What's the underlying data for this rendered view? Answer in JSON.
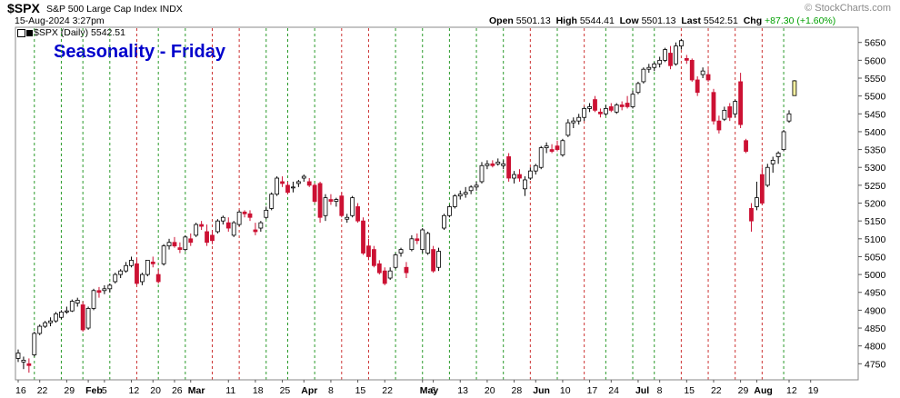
{
  "header": {
    "symbol": "$SPX",
    "name": "S&P 500 Large Cap Index  INDX",
    "brand": "© StockCharts.com",
    "datetime": "15-Aug-2024 3:27pm",
    "quote": {
      "open_label": "Open",
      "open": "5501.13",
      "high_label": "High",
      "high": "5544.41",
      "low_label": "Low",
      "low": "5501.13",
      "last_label": "Last",
      "last": "5542.51",
      "chg_label": "Chg",
      "chg": "+87.30 (+1.60%)"
    },
    "legend": "$SPX (Daily) 5542.51"
  },
  "colors": {
    "up": "#000000",
    "down": "#cc1133",
    "green_line": "#2a9a2a",
    "red_line": "#cc3333",
    "title": "#0000cc",
    "highlight": "#f5f0a0"
  },
  "chart_data": {
    "type": "candlestick",
    "title": "Seasonality - Friday",
    "ylim": [
      4705,
      5690
    ],
    "y_ticks": [
      4750,
      4800,
      4850,
      4900,
      4950,
      5000,
      5050,
      5100,
      5150,
      5200,
      5250,
      5300,
      5350,
      5400,
      5450,
      5500,
      5550,
      5600,
      5650
    ],
    "x_tick_labels": [
      {
        "i": 0,
        "label": "16"
      },
      {
        "i": 4,
        "label": "22"
      },
      {
        "i": 9,
        "label": "29"
      },
      {
        "i": 13,
        "label": "Feb",
        "bold": true
      },
      {
        "i": 16,
        "label": "5"
      },
      {
        "i": 21,
        "label": "12"
      },
      {
        "i": 25,
        "label": "20"
      },
      {
        "i": 29,
        "label": "26"
      },
      {
        "i": 32,
        "label": "Mar",
        "bold": true
      },
      {
        "i": 39,
        "label": "11"
      },
      {
        "i": 44,
        "label": "18"
      },
      {
        "i": 49,
        "label": "25"
      },
      {
        "i": 53,
        "label": "Apr",
        "bold": true
      },
      {
        "i": 58,
        "label": "8"
      },
      {
        "i": 63,
        "label": "15"
      },
      {
        "i": 68,
        "label": "22"
      },
      {
        "i": 75,
        "label": "May",
        "bold": true
      },
      {
        "i": 77,
        "label": "6"
      },
      {
        "i": 82,
        "label": "13"
      },
      {
        "i": 87,
        "label": "20"
      },
      {
        "i": 92,
        "label": "28"
      },
      {
        "i": 96,
        "label": "Jun",
        "bold": true
      },
      {
        "i": 101,
        "label": "10"
      },
      {
        "i": 106,
        "label": "17"
      },
      {
        "i": 110,
        "label": "24"
      },
      {
        "i": 115,
        "label": "Jul",
        "bold": true
      },
      {
        "i": 119,
        "label": "8"
      },
      {
        "i": 124,
        "label": "15"
      },
      {
        "i": 129,
        "label": "22"
      },
      {
        "i": 134,
        "label": "29"
      },
      {
        "i": 137,
        "label": "Aug",
        "bold": true
      },
      {
        "i": 143,
        "label": "12"
      },
      {
        "i": 147,
        "label": "19"
      }
    ],
    "friday_lines": [
      {
        "i": 3,
        "color": "green"
      },
      {
        "i": 8,
        "color": "green"
      },
      {
        "i": 12,
        "color": "green"
      },
      {
        "i": 17,
        "color": "green"
      },
      {
        "i": 22,
        "color": "red"
      },
      {
        "i": 26,
        "color": "green"
      },
      {
        "i": 31,
        "color": "green"
      },
      {
        "i": 36,
        "color": "red"
      },
      {
        "i": 41,
        "color": "red"
      },
      {
        "i": 46,
        "color": "green"
      },
      {
        "i": 50,
        "color": "green"
      },
      {
        "i": 55,
        "color": "green"
      },
      {
        "i": 60,
        "color": "red"
      },
      {
        "i": 65,
        "color": "red"
      },
      {
        "i": 70,
        "color": "green"
      },
      {
        "i": 75,
        "color": "green"
      },
      {
        "i": 80,
        "color": "green"
      },
      {
        "i": 85,
        "color": "green"
      },
      {
        "i": 90,
        "color": "green"
      },
      {
        "i": 95,
        "color": "red"
      },
      {
        "i": 100,
        "color": "green"
      },
      {
        "i": 105,
        "color": "red"
      },
      {
        "i": 109,
        "color": "green"
      },
      {
        "i": 114,
        "color": "green"
      },
      {
        "i": 118,
        "color": "green"
      },
      {
        "i": 123,
        "color": "red"
      },
      {
        "i": 128,
        "color": "red"
      },
      {
        "i": 133,
        "color": "red"
      },
      {
        "i": 138,
        "color": "red"
      },
      {
        "i": 142,
        "color": "green"
      }
    ],
    "ohlc": [
      {
        "o": 4765,
        "h": 4790,
        "l": 4755,
        "c": 4780
      },
      {
        "o": 4755,
        "h": 4770,
        "l": 4735,
        "c": 4760
      },
      {
        "o": 4750,
        "h": 4765,
        "l": 4725,
        "c": 4745
      },
      {
        "o": 4775,
        "h": 4840,
        "l": 4770,
        "c": 4835
      },
      {
        "o": 4835,
        "h": 4860,
        "l": 4830,
        "c": 4855
      },
      {
        "o": 4855,
        "h": 4870,
        "l": 4850,
        "c": 4865
      },
      {
        "o": 4865,
        "h": 4880,
        "l": 4855,
        "c": 4870
      },
      {
        "o": 4870,
        "h": 4895,
        "l": 4865,
        "c": 4890
      },
      {
        "o": 4880,
        "h": 4900,
        "l": 4875,
        "c": 4895
      },
      {
        "o": 4895,
        "h": 4910,
        "l": 4890,
        "c": 4898
      },
      {
        "o": 4898,
        "h": 4930,
        "l": 4895,
        "c": 4925
      },
      {
        "o": 4920,
        "h": 4935,
        "l": 4910,
        "c": 4928
      },
      {
        "o": 4915,
        "h": 4925,
        "l": 4840,
        "c": 4845
      },
      {
        "o": 4850,
        "h": 4910,
        "l": 4845,
        "c": 4905
      },
      {
        "o": 4905,
        "h": 4960,
        "l": 4900,
        "c": 4955
      },
      {
        "o": 4955,
        "h": 4965,
        "l": 4935,
        "c": 4950
      },
      {
        "o": 4955,
        "h": 4970,
        "l": 4945,
        "c": 4960
      },
      {
        "o": 4960,
        "h": 4975,
        "l": 4950,
        "c": 4970
      },
      {
        "o": 4980,
        "h": 5005,
        "l": 4975,
        "c": 5000
      },
      {
        "o": 5000,
        "h": 5015,
        "l": 4990,
        "c": 5010
      },
      {
        "o": 5010,
        "h": 5035,
        "l": 5005,
        "c": 5025
      },
      {
        "o": 5025,
        "h": 5050,
        "l": 5020,
        "c": 5040
      },
      {
        "o": 5030,
        "h": 5045,
        "l": 4970,
        "c": 4975
      },
      {
        "o": 4980,
        "h": 5005,
        "l": 4970,
        "c": 5000
      },
      {
        "o": 5000,
        "h": 5040,
        "l": 4995,
        "c": 5040
      },
      {
        "o": 5035,
        "h": 5050,
        "l": 5020,
        "c": 5030
      },
      {
        "o": 5000,
        "h": 5015,
        "l": 4975,
        "c": 4980
      },
      {
        "o": 5030,
        "h": 5085,
        "l": 5025,
        "c": 5080
      },
      {
        "o": 5080,
        "h": 5100,
        "l": 5070,
        "c": 5090
      },
      {
        "o": 5090,
        "h": 5105,
        "l": 5075,
        "c": 5080
      },
      {
        "o": 5075,
        "h": 5090,
        "l": 5060,
        "c": 5070
      },
      {
        "o": 5070,
        "h": 5110,
        "l": 5065,
        "c": 5105
      },
      {
        "o": 5100,
        "h": 5115,
        "l": 5080,
        "c": 5090
      },
      {
        "o": 5110,
        "h": 5145,
        "l": 5105,
        "c": 5140
      },
      {
        "o": 5140,
        "h": 5150,
        "l": 5125,
        "c": 5135
      },
      {
        "o": 5120,
        "h": 5140,
        "l": 5080,
        "c": 5090
      },
      {
        "o": 5110,
        "h": 5125,
        "l": 5085,
        "c": 5095
      },
      {
        "o": 5120,
        "h": 5155,
        "l": 5115,
        "c": 5150
      },
      {
        "o": 5150,
        "h": 5165,
        "l": 5140,
        "c": 5160
      },
      {
        "o": 5145,
        "h": 5160,
        "l": 5120,
        "c": 5130
      },
      {
        "o": 5110,
        "h": 5150,
        "l": 5105,
        "c": 5145
      },
      {
        "o": 5140,
        "h": 5180,
        "l": 5135,
        "c": 5175
      },
      {
        "o": 5175,
        "h": 5180,
        "l": 5160,
        "c": 5170
      },
      {
        "o": 5170,
        "h": 5180,
        "l": 5150,
        "c": 5160
      },
      {
        "o": 5125,
        "h": 5145,
        "l": 5110,
        "c": 5120
      },
      {
        "o": 5130,
        "h": 5150,
        "l": 5120,
        "c": 5145
      },
      {
        "o": 5160,
        "h": 5190,
        "l": 5155,
        "c": 5180
      },
      {
        "o": 5185,
        "h": 5230,
        "l": 5180,
        "c": 5225
      },
      {
        "o": 5225,
        "h": 5275,
        "l": 5220,
        "c": 5270
      },
      {
        "o": 5260,
        "h": 5275,
        "l": 5245,
        "c": 5255
      },
      {
        "o": 5250,
        "h": 5260,
        "l": 5225,
        "c": 5230
      },
      {
        "o": 5245,
        "h": 5260,
        "l": 5230,
        "c": 5245
      },
      {
        "o": 5255,
        "h": 5265,
        "l": 5245,
        "c": 5260
      },
      {
        "o": 5270,
        "h": 5280,
        "l": 5260,
        "c": 5275
      },
      {
        "o": 5260,
        "h": 5270,
        "l": 5245,
        "c": 5250
      },
      {
        "o": 5250,
        "h": 5255,
        "l": 5200,
        "c": 5205
      },
      {
        "o": 5255,
        "h": 5260,
        "l": 5145,
        "c": 5160
      },
      {
        "o": 5165,
        "h": 5225,
        "l": 5150,
        "c": 5215
      },
      {
        "o": 5210,
        "h": 5225,
        "l": 5195,
        "c": 5205
      },
      {
        "o": 5205,
        "h": 5215,
        "l": 5190,
        "c": 5210
      },
      {
        "o": 5220,
        "h": 5230,
        "l": 5160,
        "c": 5165
      },
      {
        "o": 5155,
        "h": 5170,
        "l": 5145,
        "c": 5160
      },
      {
        "o": 5165,
        "h": 5220,
        "l": 5160,
        "c": 5215
      },
      {
        "o": 5190,
        "h": 5200,
        "l": 5145,
        "c": 5150
      },
      {
        "o": 5150,
        "h": 5160,
        "l": 5055,
        "c": 5060
      },
      {
        "o": 5080,
        "h": 5100,
        "l": 5040,
        "c": 5050
      },
      {
        "o": 5070,
        "h": 5080,
        "l": 5020,
        "c": 5025
      },
      {
        "o": 5030,
        "h": 5040,
        "l": 5000,
        "c": 5005
      },
      {
        "o": 5010,
        "h": 5020,
        "l": 4970,
        "c": 4975
      },
      {
        "o": 4990,
        "h": 5020,
        "l": 4985,
        "c": 5010
      },
      {
        "o": 5020,
        "h": 5060,
        "l": 5015,
        "c": 5055
      },
      {
        "o": 5060,
        "h": 5075,
        "l": 5050,
        "c": 5070
      },
      {
        "o": 5020,
        "h": 5035,
        "l": 4990,
        "c": 5005
      },
      {
        "o": 5070,
        "h": 5110,
        "l": 5065,
        "c": 5100
      },
      {
        "o": 5100,
        "h": 5115,
        "l": 5085,
        "c": 5095
      },
      {
        "o": 5070,
        "h": 5130,
        "l": 5060,
        "c": 5125
      },
      {
        "o": 5060,
        "h": 5120,
        "l": 5055,
        "c": 5115
      },
      {
        "o": 5070,
        "h": 5080,
        "l": 5005,
        "c": 5010
      },
      {
        "o": 5020,
        "h": 5075,
        "l": 5010,
        "c": 5065
      },
      {
        "o": 5130,
        "h": 5170,
        "l": 5125,
        "c": 5165
      },
      {
        "o": 5165,
        "h": 5195,
        "l": 5160,
        "c": 5190
      },
      {
        "o": 5190,
        "h": 5225,
        "l": 5185,
        "c": 5220
      },
      {
        "o": 5220,
        "h": 5235,
        "l": 5210,
        "c": 5225
      },
      {
        "o": 5225,
        "h": 5245,
        "l": 5215,
        "c": 5230
      },
      {
        "o": 5235,
        "h": 5250,
        "l": 5225,
        "c": 5245
      },
      {
        "o": 5245,
        "h": 5260,
        "l": 5235,
        "c": 5250
      },
      {
        "o": 5260,
        "h": 5315,
        "l": 5255,
        "c": 5305
      },
      {
        "o": 5305,
        "h": 5320,
        "l": 5295,
        "c": 5310
      },
      {
        "o": 5310,
        "h": 5320,
        "l": 5300,
        "c": 5305
      },
      {
        "o": 5310,
        "h": 5325,
        "l": 5305,
        "c": 5315
      },
      {
        "o": 5305,
        "h": 5320,
        "l": 5295,
        "c": 5310
      },
      {
        "o": 5330,
        "h": 5340,
        "l": 5260,
        "c": 5270
      },
      {
        "o": 5270,
        "h": 5290,
        "l": 5255,
        "c": 5280
      },
      {
        "o": 5280,
        "h": 5295,
        "l": 5260,
        "c": 5270
      },
      {
        "o": 5240,
        "h": 5275,
        "l": 5220,
        "c": 5265
      },
      {
        "o": 5270,
        "h": 5300,
        "l": 5265,
        "c": 5290
      },
      {
        "o": 5290,
        "h": 5310,
        "l": 5280,
        "c": 5305
      },
      {
        "o": 5300,
        "h": 5360,
        "l": 5295,
        "c": 5355
      },
      {
        "o": 5355,
        "h": 5370,
        "l": 5340,
        "c": 5360
      },
      {
        "o": 5350,
        "h": 5365,
        "l": 5340,
        "c": 5345
      },
      {
        "o": 5360,
        "h": 5375,
        "l": 5345,
        "c": 5350
      },
      {
        "o": 5335,
        "h": 5380,
        "l": 5330,
        "c": 5375
      },
      {
        "o": 5390,
        "h": 5435,
        "l": 5385,
        "c": 5425
      },
      {
        "o": 5425,
        "h": 5440,
        "l": 5410,
        "c": 5430
      },
      {
        "o": 5430,
        "h": 5450,
        "l": 5420,
        "c": 5440
      },
      {
        "o": 5440,
        "h": 5470,
        "l": 5430,
        "c": 5465
      },
      {
        "o": 5465,
        "h": 5480,
        "l": 5455,
        "c": 5470
      },
      {
        "o": 5490,
        "h": 5500,
        "l": 5455,
        "c": 5460
      },
      {
        "o": 5455,
        "h": 5465,
        "l": 5440,
        "c": 5450
      },
      {
        "o": 5450,
        "h": 5475,
        "l": 5445,
        "c": 5465
      },
      {
        "o": 5470,
        "h": 5480,
        "l": 5455,
        "c": 5460
      },
      {
        "o": 5455,
        "h": 5480,
        "l": 5450,
        "c": 5475
      },
      {
        "o": 5475,
        "h": 5485,
        "l": 5460,
        "c": 5470
      },
      {
        "o": 5480,
        "h": 5500,
        "l": 5465,
        "c": 5470
      },
      {
        "o": 5470,
        "h": 5515,
        "l": 5465,
        "c": 5505
      },
      {
        "o": 5510,
        "h": 5540,
        "l": 5505,
        "c": 5535
      },
      {
        "o": 5540,
        "h": 5580,
        "l": 5535,
        "c": 5575
      },
      {
        "o": 5575,
        "h": 5590,
        "l": 5565,
        "c": 5580
      },
      {
        "o": 5580,
        "h": 5595,
        "l": 5570,
        "c": 5590
      },
      {
        "o": 5590,
        "h": 5610,
        "l": 5580,
        "c": 5600
      },
      {
        "o": 5600,
        "h": 5635,
        "l": 5595,
        "c": 5630
      },
      {
        "o": 5620,
        "h": 5640,
        "l": 5575,
        "c": 5585
      },
      {
        "o": 5590,
        "h": 5650,
        "l": 5585,
        "c": 5640
      },
      {
        "o": 5640,
        "h": 5660,
        "l": 5630,
        "c": 5655
      },
      {
        "o": 5605,
        "h": 5615,
        "l": 5590,
        "c": 5600
      },
      {
        "o": 5600,
        "h": 5605,
        "l": 5540,
        "c": 5545
      },
      {
        "o": 5545,
        "h": 5555,
        "l": 5500,
        "c": 5510
      },
      {
        "o": 5560,
        "h": 5580,
        "l": 5550,
        "c": 5570
      },
      {
        "o": 5560,
        "h": 5575,
        "l": 5540,
        "c": 5545
      },
      {
        "o": 5510,
        "h": 5520,
        "l": 5420,
        "c": 5430
      },
      {
        "o": 5430,
        "h": 5445,
        "l": 5395,
        "c": 5405
      },
      {
        "o": 5435,
        "h": 5470,
        "l": 5430,
        "c": 5460
      },
      {
        "o": 5470,
        "h": 5480,
        "l": 5430,
        "c": 5440
      },
      {
        "o": 5450,
        "h": 5490,
        "l": 5440,
        "c": 5485
      },
      {
        "o": 5540,
        "h": 5565,
        "l": 5410,
        "c": 5420
      },
      {
        "o": 5375,
        "h": 5380,
        "l": 5340,
        "c": 5345
      },
      {
        "o": 5185,
        "h": 5200,
        "l": 5120,
        "c": 5150
      },
      {
        "o": 5190,
        "h": 5260,
        "l": 5180,
        "c": 5215
      },
      {
        "o": 5280,
        "h": 5300,
        "l": 5195,
        "c": 5200
      },
      {
        "o": 5250,
        "h": 5310,
        "l": 5245,
        "c": 5300
      },
      {
        "o": 5310,
        "h": 5330,
        "l": 5285,
        "c": 5320
      },
      {
        "o": 5330,
        "h": 5345,
        "l": 5310,
        "c": 5340
      },
      {
        "o": 5350,
        "h": 5405,
        "l": 5345,
        "c": 5400
      },
      {
        "o": 5430,
        "h": 5460,
        "l": 5425,
        "c": 5450
      },
      {
        "o": 5501.13,
        "h": 5544.41,
        "l": 5501.13,
        "c": 5542.51,
        "highlight": true
      }
    ]
  }
}
